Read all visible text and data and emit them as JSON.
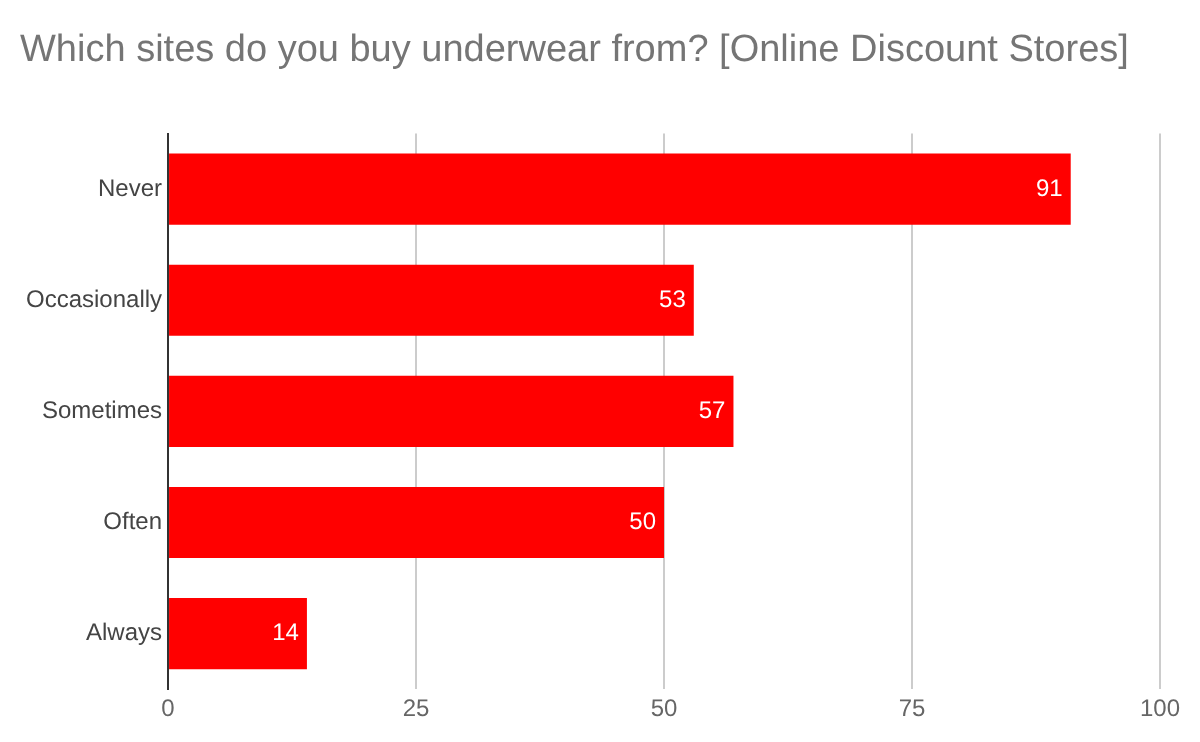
{
  "chart_data": {
    "type": "bar",
    "orientation": "horizontal",
    "title": "Which sites do you buy underwear from? [Online Discount Stores]",
    "categories": [
      "Never",
      "Occasionally",
      "Sometimes",
      "Often",
      "Always"
    ],
    "values": [
      91,
      53,
      57,
      50,
      14
    ],
    "color": "#ff0000",
    "xlim": [
      0,
      100
    ],
    "xticks": [
      0,
      25,
      50,
      75,
      100
    ],
    "grid": "x",
    "data_labels": true
  }
}
